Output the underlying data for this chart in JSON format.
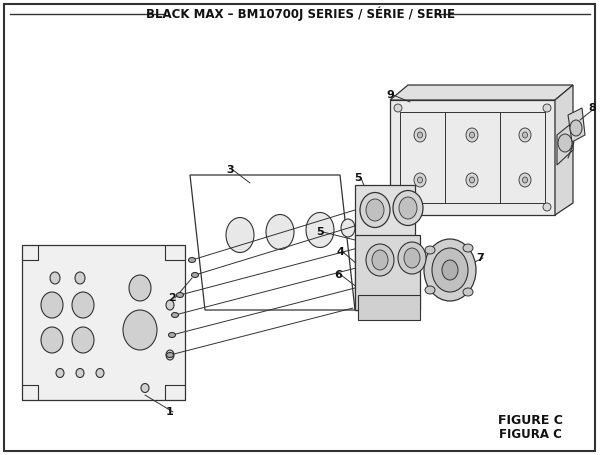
{
  "title": "BLACK MAX – BM10700J SERIES / SÉRIE / SERIE",
  "figure_label1": "FIGURE C",
  "figure_label2": "FIGURA C",
  "bg_color": "#ffffff",
  "line_color": "#333333",
  "text_color": "#111111",
  "title_fontsize": 8.5,
  "label_fontsize": 8,
  "figure_label_fontsize": 9
}
